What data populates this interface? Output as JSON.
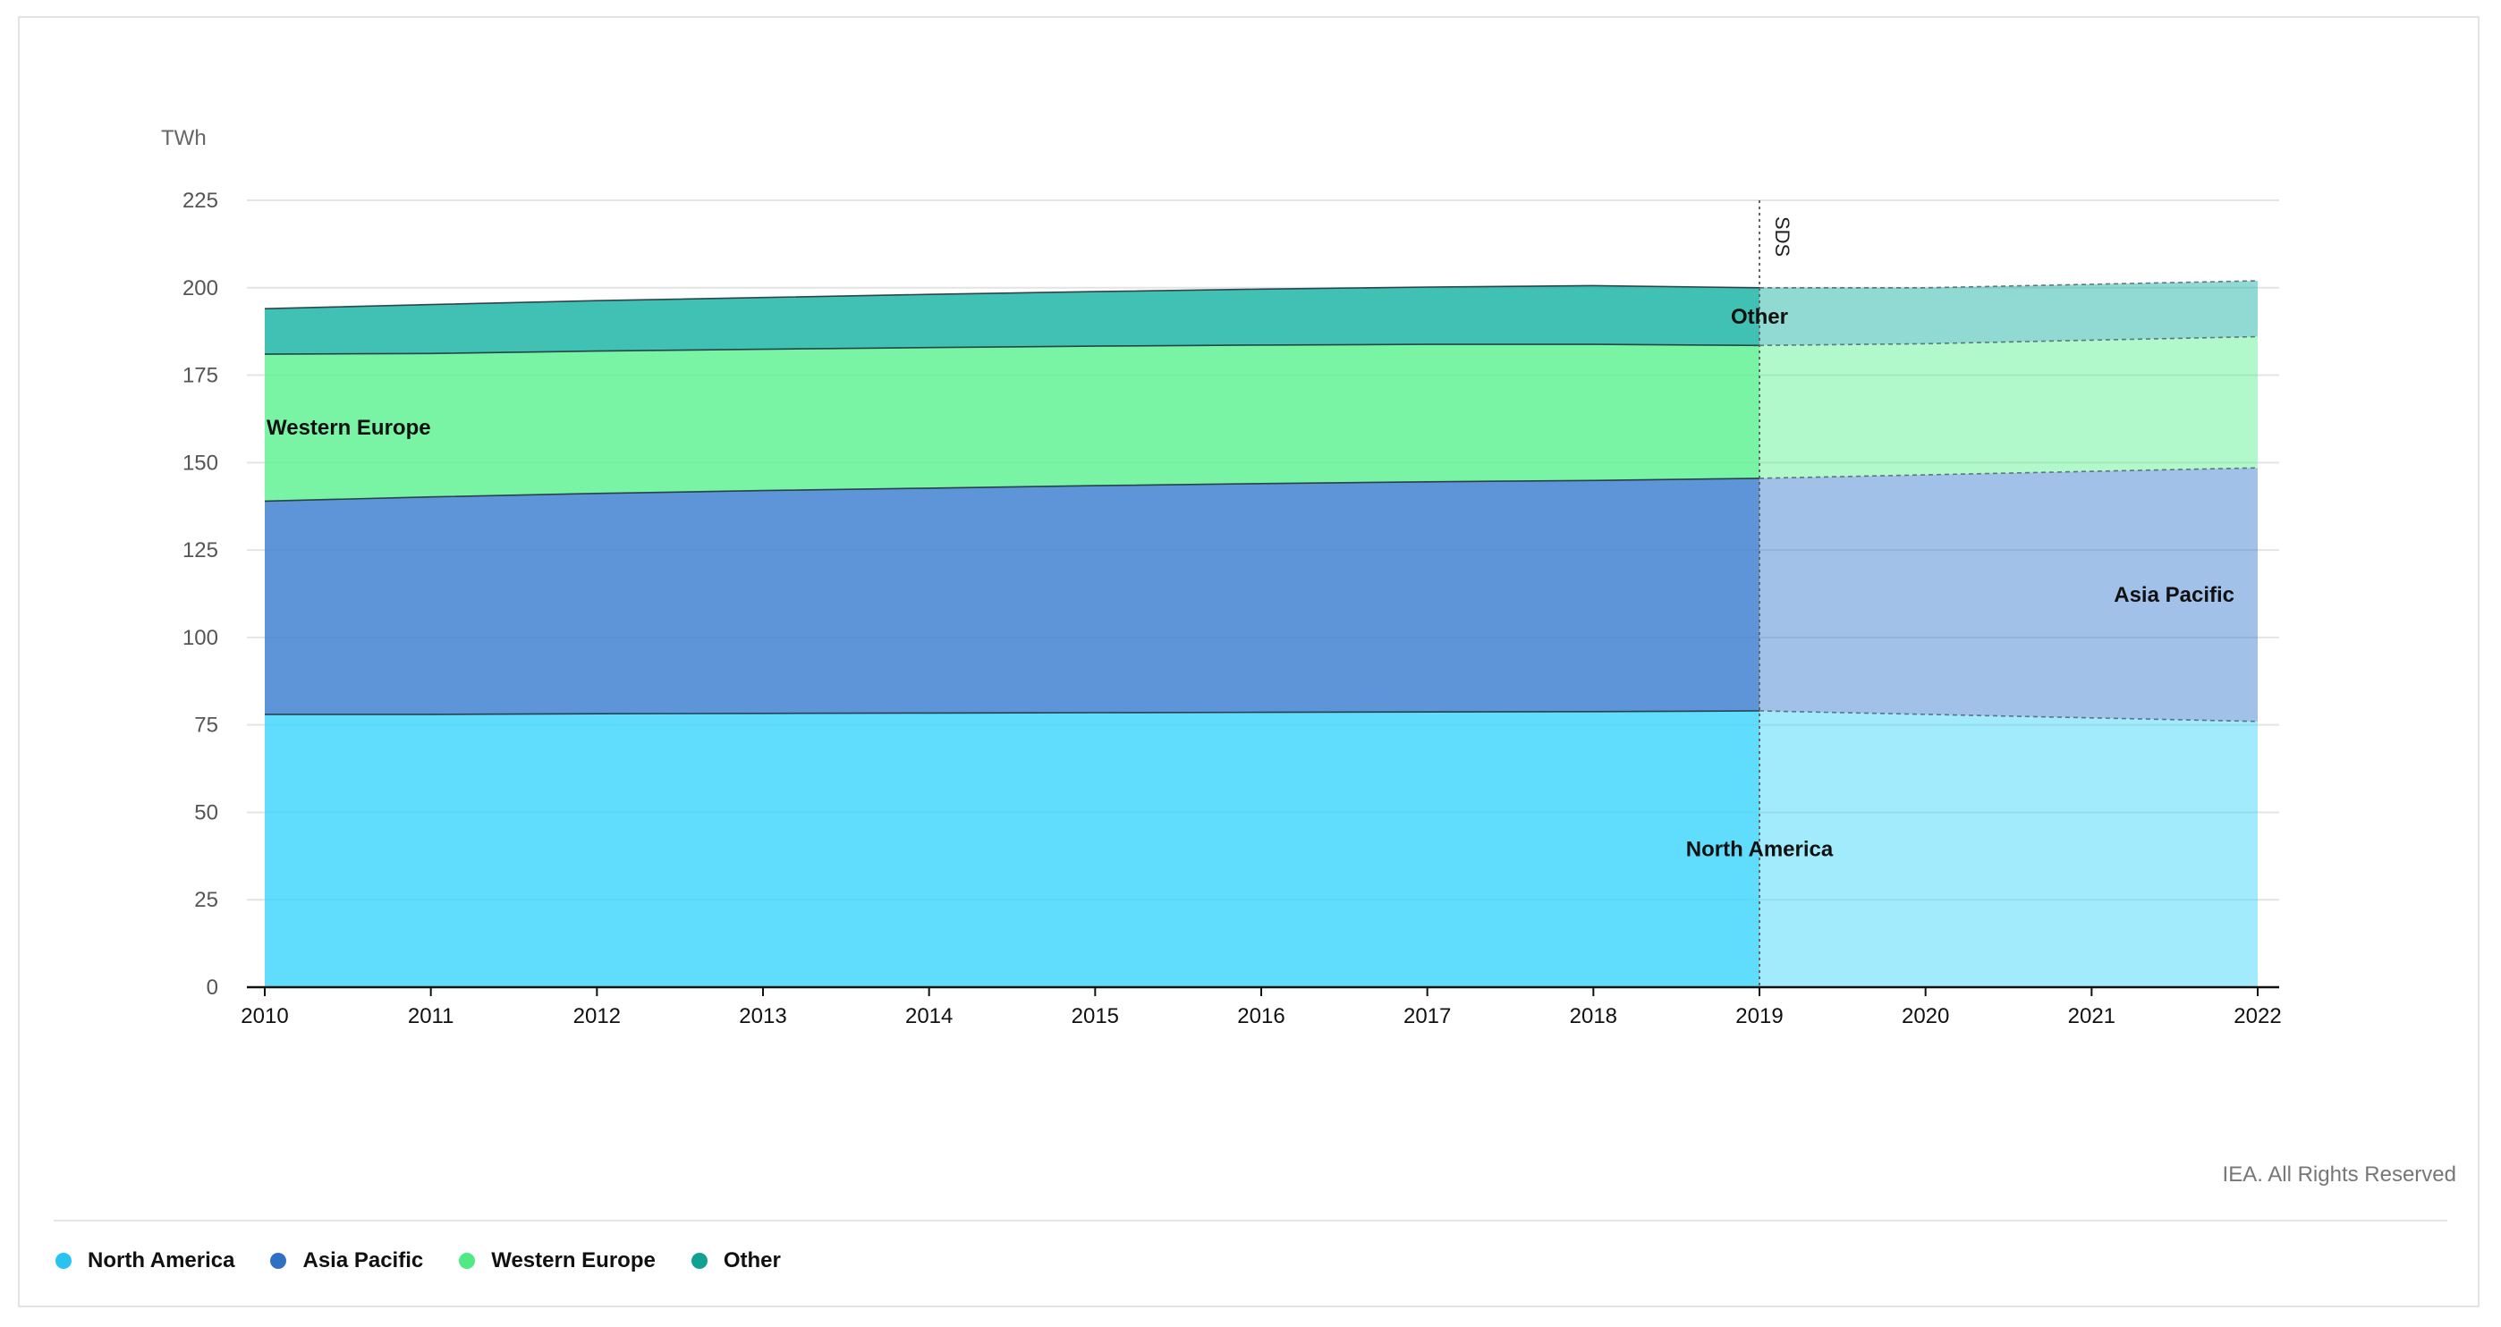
{
  "chart_data": {
    "type": "area",
    "unit_label": "TWh",
    "x": [
      2010,
      2011,
      2012,
      2013,
      2014,
      2015,
      2016,
      2017,
      2018,
      2019,
      2020,
      2021,
      2022
    ],
    "y_ticks": [
      0,
      25,
      50,
      75,
      100,
      125,
      150,
      175,
      200,
      225
    ],
    "ylim": [
      0,
      225
    ],
    "projection_start": 2019,
    "projection_label": "SDS",
    "grid": true,
    "series": [
      {
        "name": "North America",
        "color": "#3dd5fb",
        "values": [
          78,
          78,
          78.2,
          78.3,
          78.4,
          78.5,
          78.6,
          78.7,
          78.8,
          79,
          78,
          77,
          76
        ]
      },
      {
        "name": "Asia Pacific",
        "color": "#3b7ed0",
        "values": [
          61,
          62.2,
          63,
          63.7,
          64.3,
          64.9,
          65.4,
          65.8,
          66.1,
          66.5,
          68.5,
          70.5,
          72.5
        ]
      },
      {
        "name": "Western Europe",
        "color": "#5cf291",
        "values": [
          42,
          41,
          40.7,
          40.4,
          40.2,
          39.9,
          39.6,
          39.3,
          38.9,
          38,
          37.5,
          37.5,
          37.5
        ]
      },
      {
        "name": "Other",
        "color": "#17b2a4",
        "values": [
          13,
          14,
          14.4,
          14.8,
          15.2,
          15.6,
          16,
          16.4,
          16.8,
          16.5,
          16,
          16,
          16
        ]
      }
    ],
    "area_labels": [
      {
        "series": "Western Europe",
        "text": "Western Europe"
      },
      {
        "series": "Other",
        "text": "Other"
      },
      {
        "series": "Asia Pacific",
        "text": "Asia Pacific"
      },
      {
        "series": "North America",
        "text": "North America"
      }
    ]
  },
  "credit": "IEA. All Rights Reserved",
  "legend": [
    {
      "label": "North America",
      "color": "#29c3f2"
    },
    {
      "label": "Asia Pacific",
      "color": "#2f6fc4"
    },
    {
      "label": "Western Europe",
      "color": "#50ea84"
    },
    {
      "label": "Other",
      "color": "#10a193"
    }
  ]
}
